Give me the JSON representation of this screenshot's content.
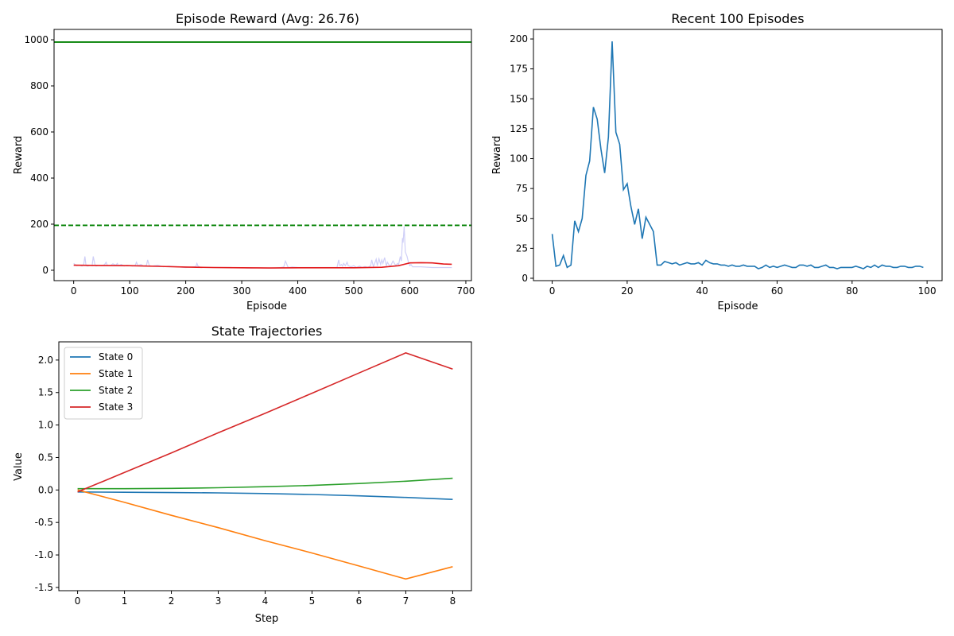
{
  "figure": {
    "background": "#ffffff"
  },
  "chart_data": [
    {
      "type": "line",
      "title": "Episode Reward (Avg: 26.76)",
      "xlabel": "Episode",
      "ylabel": "Reward",
      "xlim": [
        -35,
        710
      ],
      "ylim": [
        -45,
        1045
      ],
      "xticks": [
        0,
        100,
        200,
        300,
        400,
        500,
        600,
        700
      ],
      "yticks": [
        0,
        200,
        400,
        600,
        800,
        1000
      ],
      "grid": false,
      "legend": "none",
      "series": [
        {
          "role": "raw-reward",
          "color": "#cfcff7",
          "x": [
            0,
            5,
            10,
            15,
            18,
            20,
            22,
            25,
            30,
            33,
            35,
            38,
            40,
            45,
            50,
            55,
            58,
            60,
            65,
            70,
            75,
            78,
            80,
            85,
            90,
            95,
            100,
            105,
            110,
            112,
            115,
            120,
            125,
            130,
            132,
            135,
            140,
            150,
            160,
            170,
            180,
            190,
            200,
            210,
            218,
            220,
            222,
            225,
            230,
            240,
            250,
            260,
            270,
            280,
            290,
            300,
            310,
            320,
            330,
            340,
            350,
            360,
            370,
            375,
            378,
            380,
            382,
            385,
            390,
            400,
            410,
            420,
            430,
            440,
            450,
            460,
            470,
            473,
            475,
            478,
            480,
            482,
            485,
            488,
            490,
            495,
            500,
            505,
            510,
            515,
            520,
            525,
            530,
            532,
            535,
            540,
            542,
            545,
            548,
            550,
            552,
            555,
            558,
            560,
            565,
            570,
            575,
            578,
            580,
            583,
            585,
            587,
            588,
            590,
            592,
            595,
            598,
            600,
            602,
            605,
            610,
            620,
            640,
            660,
            675
          ],
          "y": [
            30,
            20,
            22,
            18,
            25,
            60,
            20,
            18,
            22,
            20,
            60,
            25,
            18,
            22,
            20,
            24,
            35,
            22,
            20,
            28,
            22,
            30,
            20,
            25,
            18,
            22,
            20,
            18,
            22,
            35,
            20,
            25,
            18,
            22,
            45,
            20,
            18,
            22,
            15,
            18,
            16,
            14,
            12,
            14,
            16,
            30,
            18,
            14,
            12,
            12,
            12,
            12,
            12,
            12,
            11,
            11,
            10,
            10,
            11,
            10,
            10,
            10,
            12,
            14,
            40,
            30,
            15,
            12,
            14,
            12,
            12,
            12,
            12,
            12,
            12,
            12,
            12,
            45,
            20,
            25,
            18,
            30,
            20,
            35,
            20,
            15,
            20,
            12,
            18,
            12,
            16,
            12,
            20,
            45,
            15,
            48,
            20,
            50,
            25,
            45,
            30,
            55,
            20,
            35,
            15,
            40,
            20,
            30,
            25,
            60,
            40,
            140,
            120,
            190,
            80,
            60,
            30,
            20,
            25,
            15,
            15,
            15,
            12,
            12,
            12
          ]
        },
        {
          "role": "moving-average",
          "color": "#e31a1c",
          "x": [
            0,
            50,
            100,
            150,
            200,
            250,
            300,
            350,
            400,
            450,
            500,
            550,
            580,
            600,
            620,
            640,
            660,
            675
          ],
          "y": [
            22,
            21,
            20,
            17,
            14,
            12,
            11,
            10,
            11,
            11,
            11,
            13,
            20,
            32,
            33,
            32,
            27,
            26
          ]
        },
        {
          "role": "target-line",
          "color": "#008000",
          "style": "dashed",
          "y": 195
        },
        {
          "role": "max-line",
          "color": "#008000",
          "style": "solid",
          "y": 990
        }
      ]
    },
    {
      "type": "line",
      "title": "Recent 100 Episodes",
      "xlabel": "Episode",
      "ylabel": "Reward",
      "xlim": [
        -5,
        104
      ],
      "ylim": [
        -2,
        208
      ],
      "xticks": [
        0,
        20,
        40,
        60,
        80,
        100
      ],
      "yticks": [
        0,
        25,
        50,
        75,
        100,
        125,
        150,
        175,
        200
      ],
      "grid": false,
      "legend": "none",
      "series": [
        {
          "color": "#1f77b4",
          "x": [
            0,
            1,
            2,
            3,
            4,
            5,
            6,
            7,
            8,
            9,
            10,
            11,
            12,
            13,
            14,
            15,
            16,
            17,
            18,
            19,
            20,
            21,
            22,
            23,
            24,
            25,
            26,
            27,
            28,
            29,
            30,
            31,
            32,
            33,
            34,
            35,
            36,
            37,
            38,
            39,
            40,
            41,
            42,
            43,
            44,
            45,
            46,
            47,
            48,
            49,
            50,
            51,
            52,
            53,
            54,
            55,
            56,
            57,
            58,
            59,
            60,
            61,
            62,
            63,
            64,
            65,
            66,
            67,
            68,
            69,
            70,
            71,
            72,
            73,
            74,
            75,
            76,
            77,
            78,
            79,
            80,
            81,
            82,
            83,
            84,
            85,
            86,
            87,
            88,
            89,
            90,
            91,
            92,
            93,
            94,
            95,
            96,
            97,
            98,
            99
          ],
          "y": [
            37,
            10,
            11,
            19,
            9,
            11,
            48,
            39,
            50,
            86,
            98,
            143,
            133,
            108,
            88,
            118,
            198,
            122,
            112,
            74,
            79,
            60,
            45,
            58,
            33,
            51,
            45,
            39,
            11,
            11,
            14,
            13,
            12,
            13,
            11,
            12,
            13,
            12,
            12,
            13,
            11,
            15,
            13,
            12,
            12,
            11,
            11,
            10,
            11,
            10,
            10,
            11,
            10,
            10,
            10,
            8,
            9,
            11,
            9,
            10,
            9,
            10,
            11,
            10,
            9,
            9,
            11,
            11,
            10,
            11,
            9,
            9,
            10,
            11,
            9,
            9,
            8,
            9,
            9,
            9,
            9,
            10,
            9,
            8,
            10,
            9,
            11,
            9,
            11,
            10,
            10,
            9,
            9,
            10,
            10,
            9,
            9,
            10,
            10,
            9
          ]
        }
      ]
    },
    {
      "type": "line",
      "title": "State Trajectories",
      "xlabel": "Step",
      "ylabel": "Value",
      "xlim": [
        -0.4,
        8.4
      ],
      "ylim": [
        -1.55,
        2.28
      ],
      "xticks": [
        0,
        1,
        2,
        3,
        4,
        5,
        6,
        7,
        8
      ],
      "yticks": [
        -1.5,
        -1.0,
        -0.5,
        0.0,
        0.5,
        1.0,
        1.5,
        2.0
      ],
      "grid": false,
      "legend": "top-left",
      "categories": [
        0,
        1,
        2,
        3,
        4,
        5,
        6,
        7,
        8
      ],
      "series": [
        {
          "name": "State 0",
          "color": "#1f77b4",
          "values": [
            -0.03,
            -0.035,
            -0.04,
            -0.045,
            -0.055,
            -0.07,
            -0.09,
            -0.115,
            -0.145
          ]
        },
        {
          "name": "State 1",
          "color": "#ff7f0e",
          "values": [
            0.0,
            -0.19,
            -0.39,
            -0.58,
            -0.78,
            -0.97,
            -1.17,
            -1.37,
            -1.18
          ]
        },
        {
          "name": "State 2",
          "color": "#2ca02c",
          "values": [
            0.02,
            0.02,
            0.025,
            0.035,
            0.05,
            0.07,
            0.1,
            0.135,
            0.18
          ]
        },
        {
          "name": "State 3",
          "color": "#d62728",
          "values": [
            -0.03,
            0.27,
            0.57,
            0.88,
            1.18,
            1.49,
            1.8,
            2.11,
            1.86
          ]
        }
      ]
    }
  ]
}
